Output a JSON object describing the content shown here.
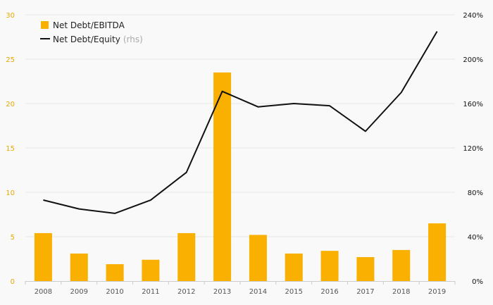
{
  "chart_data": {
    "type": "bar+line",
    "categories": [
      "2008",
      "2009",
      "2010",
      "2011",
      "2012",
      "2013",
      "2014",
      "2015",
      "2016",
      "2017",
      "2018",
      "2019"
    ],
    "series": [
      {
        "name": "Net Debt/EBITDA",
        "type": "bar",
        "axis": "left",
        "color": "#f9b000",
        "values": [
          5.4,
          3.1,
          1.9,
          2.4,
          5.4,
          23.5,
          5.2,
          3.1,
          3.4,
          2.7,
          3.5,
          6.5
        ]
      },
      {
        "name": "Net Debt/Equity",
        "name_suffix": "(rhs)",
        "type": "line",
        "axis": "right",
        "color": "#111111",
        "values": [
          73,
          65,
          61,
          73,
          98,
          171,
          157,
          160,
          158,
          135,
          170,
          225
        ]
      }
    ],
    "y_left": {
      "min": 0,
      "max": 30,
      "ticks": [
        "0",
        "5",
        "10",
        "15",
        "20",
        "25",
        "30"
      ],
      "tick_values": [
        0,
        5,
        10,
        15,
        20,
        25,
        30
      ],
      "color": "#e8a800"
    },
    "y_right": {
      "min": 0,
      "max": 240,
      "ticks": [
        "0%",
        "40%",
        "80%",
        "120%",
        "160%",
        "200%",
        "240%"
      ],
      "tick_values": [
        0,
        40,
        80,
        120,
        160,
        200,
        240
      ],
      "color": "#111111"
    },
    "grid": true,
    "legend_position": "top-left"
  }
}
